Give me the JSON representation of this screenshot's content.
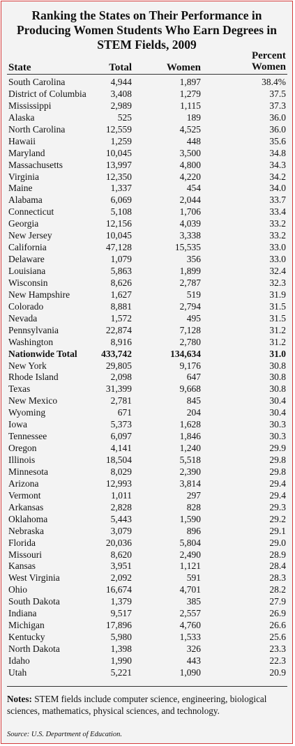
{
  "title_lines": [
    "Ranking the States on Their Performance in",
    "Producing Women Students Who Earn Degrees in",
    "STEM Fields, 2009"
  ],
  "headers": {
    "state": "State",
    "total": "Total",
    "women": "Women",
    "percent_line1": "Percent",
    "percent_line2": "Women"
  },
  "rows": [
    {
      "state": "South Carolina",
      "total": "4,944",
      "women": "1,897",
      "pct": "38.4%"
    },
    {
      "state": "District of Columbia",
      "total": "3,408",
      "women": "1,279",
      "pct": "37.5"
    },
    {
      "state": "Mississippi",
      "total": "2,989",
      "women": "1,115",
      "pct": "37.3"
    },
    {
      "state": "Alaska",
      "total": "525",
      "women": "189",
      "pct": "36.0"
    },
    {
      "state": "North Carolina",
      "total": "12,559",
      "women": "4,525",
      "pct": "36.0"
    },
    {
      "state": "Hawaii",
      "total": "1,259",
      "women": "448",
      "pct": "35.6"
    },
    {
      "state": "Maryland",
      "total": "10,045",
      "women": "3,500",
      "pct": "34.8"
    },
    {
      "state": "Massachusetts",
      "total": "13,997",
      "women": "4,800",
      "pct": "34.3"
    },
    {
      "state": "Virginia",
      "total": "12,350",
      "women": "4,220",
      "pct": "34.2"
    },
    {
      "state": "Maine",
      "total": "1,337",
      "women": "454",
      "pct": "34.0"
    },
    {
      "state": "Alabama",
      "total": "6,069",
      "women": "2,044",
      "pct": "33.7"
    },
    {
      "state": "Connecticut",
      "total": "5,108",
      "women": "1,706",
      "pct": "33.4"
    },
    {
      "state": "Georgia",
      "total": "12,156",
      "women": "4,039",
      "pct": "33.2"
    },
    {
      "state": "New Jersey",
      "total": "10,045",
      "women": "3,338",
      "pct": "33.2"
    },
    {
      "state": "California",
      "total": "47,128",
      "women": "15,535",
      "pct": "33.0"
    },
    {
      "state": "Delaware",
      "total": "1,079",
      "women": "356",
      "pct": "33.0"
    },
    {
      "state": "Louisiana",
      "total": "5,863",
      "women": "1,899",
      "pct": "32.4"
    },
    {
      "state": "Wisconsin",
      "total": "8,626",
      "women": "2,787",
      "pct": "32.3"
    },
    {
      "state": "New Hampshire",
      "total": "1,627",
      "women": "519",
      "pct": "31.9"
    },
    {
      "state": "Colorado",
      "total": "8,881",
      "women": "2,794",
      "pct": "31.5"
    },
    {
      "state": "Nevada",
      "total": "1,572",
      "women": "495",
      "pct": "31.5"
    },
    {
      "state": "Pennsylvania",
      "total": "22,874",
      "women": "7,128",
      "pct": "31.2"
    },
    {
      "state": "Washington",
      "total": "8,916",
      "women": "2,780",
      "pct": "31.2"
    },
    {
      "state": "Nationwide Total",
      "total": "433,742",
      "women": "134,634",
      "pct": "31.0",
      "bold": true
    },
    {
      "state": "New York",
      "total": "29,805",
      "women": "9,176",
      "pct": "30.8"
    },
    {
      "state": "Rhode Island",
      "total": "2,098",
      "women": "647",
      "pct": "30.8"
    },
    {
      "state": "Texas",
      "total": "31,399",
      "women": "9,668",
      "pct": "30.8"
    },
    {
      "state": "New Mexico",
      "total": "2,781",
      "women": "845",
      "pct": "30.4"
    },
    {
      "state": "Wyoming",
      "total": "671",
      "women": "204",
      "pct": "30.4"
    },
    {
      "state": "Iowa",
      "total": "5,373",
      "women": "1,628",
      "pct": "30.3"
    },
    {
      "state": "Tennessee",
      "total": "6,097",
      "women": "1,846",
      "pct": "30.3"
    },
    {
      "state": "Oregon",
      "total": "4,141",
      "women": "1,240",
      "pct": "29.9"
    },
    {
      "state": "Illinois",
      "total": "18,504",
      "women": "5,518",
      "pct": "29.8"
    },
    {
      "state": "Minnesota",
      "total": "8,029",
      "women": "2,390",
      "pct": "29.8"
    },
    {
      "state": "Arizona",
      "total": "12,993",
      "women": "3,814",
      "pct": "29.4"
    },
    {
      "state": "Vermont",
      "total": "1,011",
      "women": "297",
      "pct": "29.4"
    },
    {
      "state": "Arkansas",
      "total": "2,828",
      "women": "828",
      "pct": "29.3"
    },
    {
      "state": "Oklahoma",
      "total": "5,443",
      "women": "1,590",
      "pct": "29.2"
    },
    {
      "state": "Nebraska",
      "total": "3,079",
      "women": "896",
      "pct": "29.1"
    },
    {
      "state": "Florida",
      "total": "20,036",
      "women": "5,804",
      "pct": "29.0"
    },
    {
      "state": "Missouri",
      "total": "8,620",
      "women": "2,490",
      "pct": "28.9"
    },
    {
      "state": "Kansas",
      "total": "3,951",
      "women": "1,121",
      "pct": "28.4"
    },
    {
      "state": "West Virginia",
      "total": "2,092",
      "women": "591",
      "pct": "28.3"
    },
    {
      "state": "Ohio",
      "total": "16,674",
      "women": "4,701",
      "pct": "28.2"
    },
    {
      "state": "South Dakota",
      "total": "1,379",
      "women": "385",
      "pct": "27.9"
    },
    {
      "state": "Indiana",
      "total": "9,517",
      "women": "2,557",
      "pct": "26.9"
    },
    {
      "state": "Michigan",
      "total": "17,896",
      "women": "4,760",
      "pct": "26.6"
    },
    {
      "state": "Kentucky",
      "total": "5,980",
      "women": "1,533",
      "pct": "25.6"
    },
    {
      "state": "North Dakota",
      "total": "1,398",
      "women": "326",
      "pct": "23.3"
    },
    {
      "state": "Idaho",
      "total": "1,990",
      "women": "443",
      "pct": "22.3"
    },
    {
      "state": "Utah",
      "total": "5,221",
      "women": "1,090",
      "pct": "20.9"
    }
  ],
  "notes": {
    "label": "Notes:",
    "text": " STEM fields include computer science, engineering, biological sciences, mathematics, physical sciences, and technology."
  },
  "source": "Source: U.S. Department of Education.",
  "colors": {
    "border": "#d43a3a",
    "background": "#f3f3f3"
  }
}
